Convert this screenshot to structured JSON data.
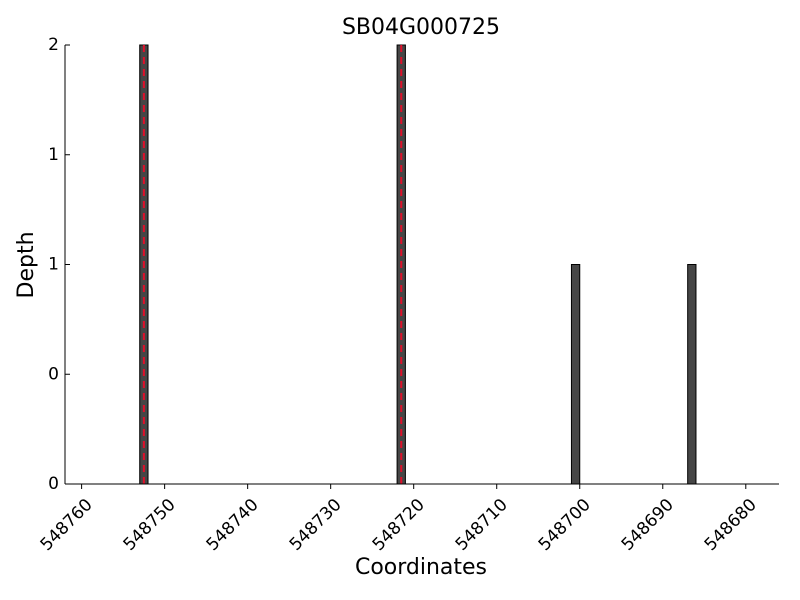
{
  "chart_data": {
    "type": "bar",
    "title": "SB04G000725",
    "x_label": "Coordinates",
    "y_label": "Depth",
    "x": [
      548753,
      548722,
      548701,
      548687
    ],
    "values": [
      2,
      2,
      1,
      1
    ],
    "bar_width": 1,
    "color": "#464646",
    "edge_color": "#000000",
    "vlines": [
      548752.5,
      548721.5
    ],
    "vline_color": "#e0102a",
    "xlim": [
      548762,
      548676
    ],
    "xticks": [
      548760,
      548750,
      548740,
      548730,
      548720,
      548710,
      548700,
      548690,
      548680
    ],
    "ylim": [
      0,
      2
    ],
    "yticks": [
      0,
      {
        "value": 0.5,
        "label": "0"
      },
      1,
      {
        "value": 1.5,
        "label": "1"
      },
      2
    ]
  }
}
